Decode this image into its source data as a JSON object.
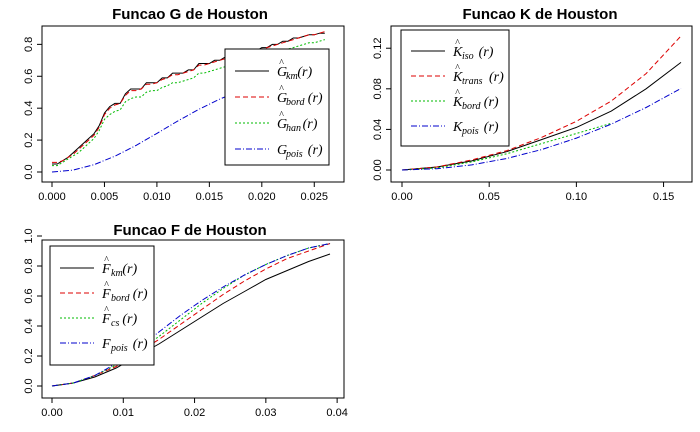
{
  "chart_data": [
    {
      "id": "G",
      "type": "line",
      "title": "Funcao G de Houston",
      "xlim": [
        0,
        0.0265
      ],
      "ylim": [
        0,
        0.89
      ],
      "xticks": [
        "0.000",
        "0.005",
        "0.010",
        "0.015",
        "0.020",
        "0.025"
      ],
      "xtick_values": [
        0,
        0.005,
        0.01,
        0.015,
        0.02,
        0.025
      ],
      "yticks": [
        "0.0",
        "0.2",
        "0.4",
        "0.6",
        "0.8"
      ],
      "ytick_values": [
        0,
        0.2,
        0.4,
        0.6,
        0.8
      ],
      "legend_position": "right",
      "series": [
        {
          "name": "km",
          "legend_main": "G",
          "legend_sub": "km",
          "hat": true,
          "color": "#000000",
          "dash": "",
          "x": [
            0,
            0.0005,
            0.001,
            0.0015,
            0.002,
            0.0025,
            0.003,
            0.0035,
            0.004,
            0.0045,
            0.005,
            0.0055,
            0.006,
            0.0065,
            0.007,
            0.0075,
            0.008,
            0.0085,
            0.009,
            0.0095,
            0.01,
            0.0105,
            0.011,
            0.0115,
            0.012,
            0.0125,
            0.013,
            0.0135,
            0.014,
            0.0145,
            0.015,
            0.0155,
            0.016,
            0.0165,
            0.017,
            0.0175,
            0.018,
            0.0185,
            0.019,
            0.0195,
            0.02,
            0.0205,
            0.021,
            0.0215,
            0.022,
            0.0225,
            0.023,
            0.0235,
            0.024,
            0.0245,
            0.025,
            0.0255,
            0.026
          ],
          "y": [
            0.05,
            0.05,
            0.07,
            0.09,
            0.12,
            0.15,
            0.18,
            0.21,
            0.24,
            0.29,
            0.37,
            0.41,
            0.43,
            0.43,
            0.49,
            0.52,
            0.52,
            0.52,
            0.56,
            0.56,
            0.56,
            0.59,
            0.59,
            0.62,
            0.62,
            0.62,
            0.64,
            0.64,
            0.68,
            0.68,
            0.68,
            0.7,
            0.7,
            0.72,
            0.72,
            0.72,
            0.74,
            0.74,
            0.76,
            0.76,
            0.78,
            0.78,
            0.8,
            0.8,
            0.82,
            0.82,
            0.84,
            0.84,
            0.85,
            0.86,
            0.86,
            0.87,
            0.87
          ]
        },
        {
          "name": "bord",
          "legend_main": "G",
          "legend_sub": "bord",
          "hat": true,
          "color": "#dd0000",
          "dash": "5,3",
          "x": [
            0,
            0.0005,
            0.001,
            0.0015,
            0.002,
            0.0025,
            0.003,
            0.0035,
            0.004,
            0.0045,
            0.005,
            0.0055,
            0.006,
            0.0065,
            0.007,
            0.0075,
            0.008,
            0.0085,
            0.009,
            0.0095,
            0.01,
            0.0105,
            0.011,
            0.0115,
            0.012,
            0.0125,
            0.013,
            0.0135,
            0.014,
            0.0145,
            0.015,
            0.0155,
            0.016,
            0.0165,
            0.017,
            0.0175,
            0.018,
            0.0185,
            0.019,
            0.0195,
            0.02,
            0.0205,
            0.021,
            0.0215,
            0.022,
            0.0225,
            0.023,
            0.0235,
            0.024,
            0.0245,
            0.025,
            0.0255,
            0.026
          ],
          "y": [
            0.06,
            0.06,
            0.07,
            0.09,
            0.11,
            0.14,
            0.17,
            0.2,
            0.23,
            0.28,
            0.36,
            0.4,
            0.42,
            0.43,
            0.48,
            0.51,
            0.51,
            0.52,
            0.55,
            0.55,
            0.56,
            0.58,
            0.59,
            0.61,
            0.61,
            0.62,
            0.63,
            0.64,
            0.67,
            0.67,
            0.68,
            0.69,
            0.7,
            0.71,
            0.72,
            0.72,
            0.73,
            0.74,
            0.75,
            0.76,
            0.77,
            0.78,
            0.79,
            0.8,
            0.81,
            0.82,
            0.83,
            0.84,
            0.85,
            0.86,
            0.86,
            0.87,
            0.88
          ]
        },
        {
          "name": "han",
          "legend_main": "G",
          "legend_sub": "han",
          "hat": true,
          "color": "#00bb00",
          "dash": "2,2",
          "x": [
            0,
            0.0005,
            0.001,
            0.0015,
            0.002,
            0.0025,
            0.003,
            0.0035,
            0.004,
            0.0045,
            0.005,
            0.0055,
            0.006,
            0.0065,
            0.007,
            0.0075,
            0.008,
            0.0085,
            0.009,
            0.0095,
            0.01,
            0.0105,
            0.011,
            0.0115,
            0.012,
            0.0125,
            0.013,
            0.0135,
            0.014,
            0.0145,
            0.015,
            0.0155,
            0.016,
            0.0165,
            0.017,
            0.0175,
            0.018,
            0.0185,
            0.019,
            0.0195,
            0.02,
            0.0205,
            0.021,
            0.0215,
            0.022,
            0.0225,
            0.023,
            0.0235,
            0.024,
            0.0245,
            0.025,
            0.0255,
            0.026
          ],
          "y": [
            0.04,
            0.04,
            0.06,
            0.08,
            0.1,
            0.12,
            0.15,
            0.18,
            0.21,
            0.26,
            0.33,
            0.36,
            0.38,
            0.39,
            0.44,
            0.46,
            0.47,
            0.47,
            0.5,
            0.51,
            0.51,
            0.53,
            0.54,
            0.56,
            0.56,
            0.57,
            0.58,
            0.59,
            0.62,
            0.62,
            0.63,
            0.64,
            0.65,
            0.66,
            0.67,
            0.67,
            0.68,
            0.69,
            0.7,
            0.71,
            0.72,
            0.73,
            0.74,
            0.75,
            0.76,
            0.77,
            0.78,
            0.79,
            0.8,
            0.81,
            0.81,
            0.82,
            0.83
          ]
        },
        {
          "name": "pois",
          "legend_main": "G",
          "legend_sub": "pois",
          "hat": false,
          "color": "#0000cc",
          "dash": "6,2,1,2",
          "x": [
            0,
            0.002,
            0.004,
            0.006,
            0.008,
            0.01,
            0.012,
            0.014,
            0.016,
            0.018,
            0.02,
            0.022,
            0.024,
            0.026
          ],
          "y": [
            0,
            0.012,
            0.046,
            0.099,
            0.166,
            0.242,
            0.32,
            0.393,
            0.457,
            0.513,
            0.566,
            0.618,
            0.668,
            0.72
          ]
        }
      ]
    },
    {
      "id": "K",
      "type": "line",
      "title": "Funcao K de Houston",
      "xlim": [
        0,
        0.16
      ],
      "ylim": [
        0,
        0.135
      ],
      "xticks": [
        "0.00",
        "0.05",
        "0.10",
        "0.15"
      ],
      "xtick_values": [
        0,
        0.05,
        0.1,
        0.15
      ],
      "yticks": [
        "0.00",
        "0.04",
        "0.08",
        "0.12"
      ],
      "ytick_values": [
        0,
        0.04,
        0.08,
        0.12
      ],
      "legend_position": "top-left",
      "series": [
        {
          "name": "iso",
          "legend_main": "K",
          "legend_sub": "iso",
          "hat": true,
          "color": "#000000",
          "dash": "",
          "x": [
            0,
            0.02,
            0.04,
            0.06,
            0.08,
            0.1,
            0.12,
            0.14,
            0.16
          ],
          "y": [
            0,
            0.003,
            0.009,
            0.018,
            0.03,
            0.042,
            0.058,
            0.08,
            0.106
          ]
        },
        {
          "name": "trans",
          "legend_main": "K",
          "legend_sub": "trans",
          "hat": true,
          "color": "#dd0000",
          "dash": "5,3",
          "x": [
            0,
            0.02,
            0.04,
            0.06,
            0.08,
            0.1,
            0.12,
            0.14,
            0.16
          ],
          "y": [
            0,
            0.003,
            0.01,
            0.019,
            0.032,
            0.048,
            0.068,
            0.095,
            0.132
          ]
        },
        {
          "name": "bord",
          "legend_main": "K",
          "legend_sub": "bord",
          "hat": true,
          "color": "#00bb00",
          "dash": "2,2",
          "x": [
            0,
            0.02,
            0.04,
            0.06,
            0.08,
            0.1,
            0.12
          ],
          "y": [
            0,
            0.002,
            0.008,
            0.016,
            0.026,
            0.036,
            0.046
          ]
        },
        {
          "name": "pois",
          "legend_main": "K",
          "legend_sub": "pois",
          "hat": false,
          "color": "#0000cc",
          "dash": "6,2,1,2",
          "x": [
            0,
            0.02,
            0.04,
            0.06,
            0.08,
            0.1,
            0.12,
            0.14,
            0.16
          ],
          "y": [
            0,
            0.0013,
            0.005,
            0.0113,
            0.0201,
            0.0314,
            0.0452,
            0.0616,
            0.0804
          ]
        }
      ]
    },
    {
      "id": "F",
      "type": "line",
      "title": "Funcao F de Houston",
      "xlim": [
        0,
        0.039
      ],
      "ylim": [
        0,
        1.0
      ],
      "xticks": [
        "0.00",
        "0.01",
        "0.02",
        "0.03",
        "0.04"
      ],
      "xtick_values": [
        0,
        0.01,
        0.02,
        0.03,
        0.04
      ],
      "yticks": [
        "0.0",
        "0.2",
        "0.4",
        "0.6",
        "0.8",
        "1.0"
      ],
      "ytick_values": [
        0,
        0.2,
        0.4,
        0.6,
        0.8,
        1.0
      ],
      "legend_position": "top-left",
      "series": [
        {
          "name": "km",
          "legend_main": "F",
          "legend_sub": "km",
          "hat": true,
          "color": "#000000",
          "dash": "",
          "x": [
            0,
            0.003,
            0.006,
            0.009,
            0.012,
            0.015,
            0.018,
            0.021,
            0.024,
            0.027,
            0.03,
            0.033,
            0.036,
            0.039
          ],
          "y": [
            0,
            0.02,
            0.06,
            0.12,
            0.2,
            0.28,
            0.37,
            0.46,
            0.55,
            0.63,
            0.71,
            0.77,
            0.83,
            0.88
          ]
        },
        {
          "name": "bord",
          "legend_main": "F",
          "legend_sub": "bord",
          "hat": true,
          "color": "#dd0000",
          "dash": "5,3",
          "x": [
            0,
            0.003,
            0.006,
            0.009,
            0.012,
            0.015,
            0.018,
            0.021,
            0.024,
            0.027,
            0.03,
            0.033,
            0.036,
            0.039
          ],
          "y": [
            0,
            0.02,
            0.07,
            0.13,
            0.22,
            0.31,
            0.41,
            0.51,
            0.61,
            0.7,
            0.78,
            0.85,
            0.9,
            0.95
          ]
        },
        {
          "name": "cs",
          "legend_main": "F",
          "legend_sub": "cs",
          "hat": true,
          "color": "#00bb00",
          "dash": "2,2",
          "x": [
            0,
            0.003,
            0.006,
            0.009,
            0.012,
            0.015,
            0.018,
            0.021,
            0.024,
            0.027,
            0.03,
            0.033,
            0.036,
            0.039
          ],
          "y": [
            0,
            0.02,
            0.07,
            0.14,
            0.23,
            0.33,
            0.44,
            0.55,
            0.65,
            0.74,
            0.81,
            0.87,
            0.92,
            0.95
          ]
        },
        {
          "name": "pois",
          "legend_main": "F",
          "legend_sub": "pois",
          "hat": false,
          "color": "#0000cc",
          "dash": "6,2,1,2",
          "x": [
            0,
            0.003,
            0.006,
            0.009,
            0.012,
            0.015,
            0.018,
            0.021,
            0.024,
            0.027,
            0.03,
            0.033,
            0.036,
            0.039
          ],
          "y": [
            0,
            0.02,
            0.07,
            0.15,
            0.25,
            0.36,
            0.47,
            0.57,
            0.66,
            0.74,
            0.81,
            0.87,
            0.92,
            0.95
          ]
        }
      ]
    }
  ]
}
